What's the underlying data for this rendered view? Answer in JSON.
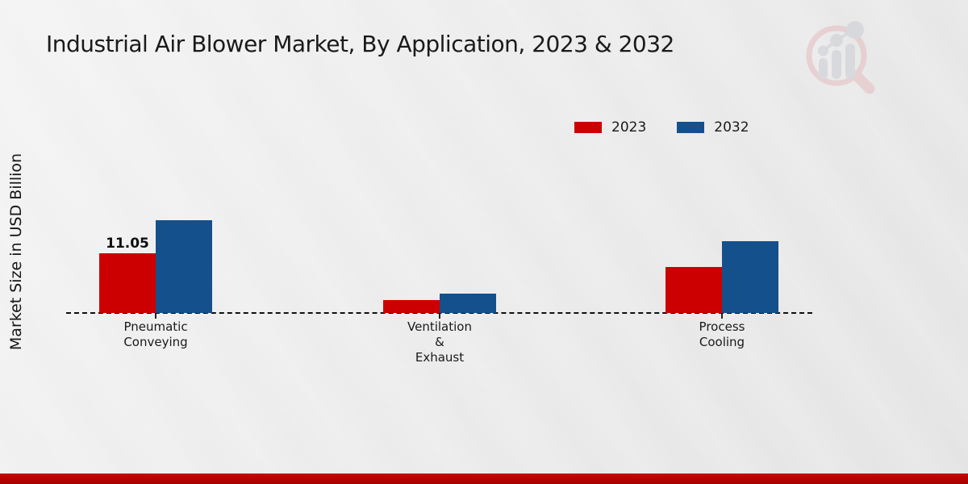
{
  "chart_data": {
    "type": "bar",
    "title": "Industrial Air Blower Market, By Application, 2023 & 2032",
    "ylabel": "Market Size in USD Billion",
    "xlabel": "",
    "categories": [
      "Pneumatic Conveying",
      "Ventilation & Exhaust",
      "Process Cooling"
    ],
    "category_display": [
      [
        "Pneumatic",
        "Conveying"
      ],
      [
        "Ventilation",
        "&",
        "Exhaust"
      ],
      [
        "Process",
        "Cooling"
      ]
    ],
    "series": [
      {
        "name": "2023",
        "color": "#cc0000",
        "values": [
          11.05,
          2.4,
          8.5
        ],
        "data_labels": [
          "11.05",
          "",
          ""
        ]
      },
      {
        "name": "2032",
        "color": "#14508c",
        "values": [
          17.2,
          3.6,
          13.3
        ],
        "data_labels": [
          "",
          "",
          ""
        ]
      }
    ],
    "ylim": [
      0,
      20
    ],
    "grid": false,
    "y_axis_visible": false,
    "legend_position": "top-right",
    "baseline_style": "dashed"
  },
  "watermark": {
    "icon": "magnifier-bar-chart-logo"
  },
  "footer": {
    "bar_color_top": "#c90603",
    "bar_color_bottom": "#a30300"
  }
}
